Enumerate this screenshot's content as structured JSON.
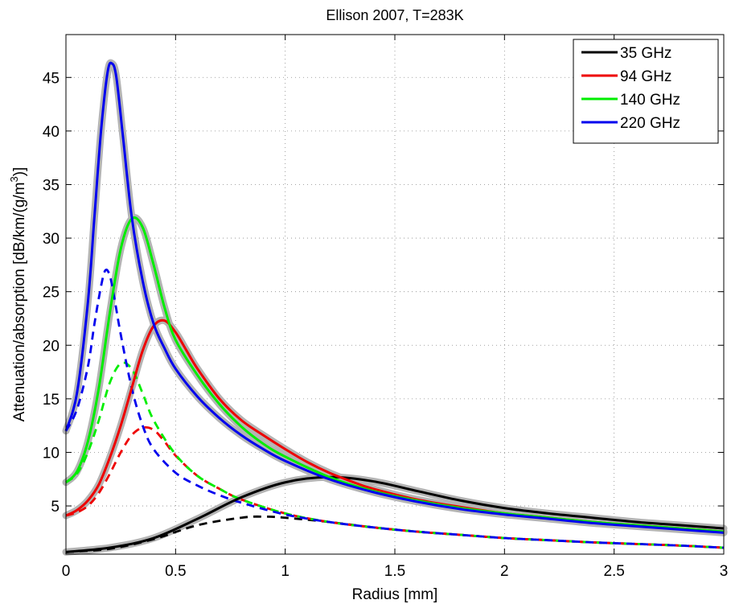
{
  "chart_data": {
    "type": "line",
    "title": "Ellison 2007, T=283K",
    "xlabel": "Radius [mm]",
    "ylabel": "Attenuation/absorption [dB/km/(g/m^3)]",
    "xlim": [
      0,
      3
    ],
    "ylim": [
      0.5,
      49
    ],
    "xticks": [
      0,
      0.5,
      1,
      1.5,
      2,
      2.5,
      3
    ],
    "xtick_labels": [
      "0",
      "0.5",
      "1",
      "1.5",
      "2",
      "2.5",
      "3"
    ],
    "yticks": [
      5,
      10,
      15,
      20,
      25,
      30,
      35,
      40,
      45
    ],
    "ytick_labels": [
      "5",
      "10",
      "15",
      "20",
      "25",
      "30",
      "35",
      "40",
      "45"
    ],
    "grid": true,
    "legend_position": "top-right",
    "series": [
      {
        "name": "35 GHz",
        "color": "#000000",
        "attenuation": {
          "x": [
            0,
            0.2,
            0.4,
            0.6,
            0.8,
            1.0,
            1.2,
            1.4,
            1.6,
            1.8,
            2.0,
            2.2,
            2.4,
            2.6,
            2.8,
            3.0
          ],
          "y": [
            0.7,
            1.1,
            2.0,
            3.8,
            5.8,
            7.2,
            7.7,
            7.3,
            6.4,
            5.5,
            4.8,
            4.3,
            3.9,
            3.5,
            3.2,
            2.9
          ]
        },
        "absorption": {
          "x": [
            0,
            0.2,
            0.4,
            0.6,
            0.8,
            0.9,
            1.0,
            1.2,
            1.4,
            1.6,
            1.8,
            2.0,
            2.2,
            2.4,
            2.6,
            2.8,
            3.0
          ],
          "y": [
            0.7,
            1.0,
            1.9,
            3.2,
            3.9,
            4.0,
            3.9,
            3.5,
            3.0,
            2.6,
            2.3,
            2.0,
            1.8,
            1.6,
            1.45,
            1.3,
            1.1
          ]
        }
      },
      {
        "name": "94 GHz",
        "color": "#ee0000",
        "attenuation": {
          "x": [
            0,
            0.05,
            0.1,
            0.15,
            0.2,
            0.25,
            0.3,
            0.35,
            0.4,
            0.45,
            0.5,
            0.55,
            0.6,
            0.7,
            0.8,
            0.9,
            1.0,
            1.1,
            1.2,
            1.3,
            1.4,
            1.6,
            1.8,
            2.0,
            2.2,
            2.4,
            2.6,
            2.8,
            3.0
          ],
          "y": [
            4.1,
            4.6,
            5.5,
            7.0,
            9.5,
            12.5,
            16.0,
            19.5,
            21.8,
            22.3,
            21.2,
            19.5,
            17.8,
            15.0,
            13.0,
            11.6,
            10.3,
            9.1,
            8.1,
            7.3,
            6.6,
            5.6,
            4.9,
            4.3,
            3.9,
            3.5,
            3.2,
            2.9,
            2.6
          ]
        },
        "absorption": {
          "x": [
            0,
            0.05,
            0.1,
            0.15,
            0.2,
            0.25,
            0.3,
            0.35,
            0.4,
            0.45,
            0.5,
            0.6,
            0.7,
            0.8,
            1.0,
            1.2,
            1.4,
            1.6,
            1.8,
            2.0,
            2.2,
            2.4,
            2.6,
            2.8,
            3.0
          ],
          "y": [
            4.1,
            4.4,
            5.0,
            6.2,
            8.0,
            10.0,
            11.6,
            12.3,
            12.1,
            11.0,
            9.7,
            7.8,
            6.6,
            5.6,
            4.3,
            3.5,
            3.0,
            2.6,
            2.3,
            2.0,
            1.8,
            1.6,
            1.45,
            1.3,
            1.1
          ]
        }
      },
      {
        "name": "140 GHz",
        "color": "#00ee00",
        "attenuation": {
          "x": [
            0,
            0.05,
            0.1,
            0.15,
            0.2,
            0.25,
            0.3,
            0.35,
            0.4,
            0.45,
            0.5,
            0.6,
            0.7,
            0.8,
            0.9,
            1.0,
            1.2,
            1.4,
            1.6,
            1.8,
            2.0,
            2.2,
            2.4,
            2.6,
            2.8,
            3.0
          ],
          "y": [
            7.2,
            8.2,
            11.0,
            16.0,
            23.0,
            29.0,
            31.8,
            31.0,
            27.5,
            23.5,
            20.5,
            17.2,
            14.5,
            12.4,
            10.8,
            9.6,
            7.7,
            6.4,
            5.5,
            4.8,
            4.3,
            3.9,
            3.5,
            3.2,
            2.9,
            2.6
          ]
        },
        "absorption": {
          "x": [
            0,
            0.05,
            0.1,
            0.15,
            0.2,
            0.25,
            0.3,
            0.35,
            0.4,
            0.5,
            0.6,
            0.7,
            0.8,
            1.0,
            1.2,
            1.4,
            1.6,
            1.8,
            2.0,
            2.2,
            2.4,
            2.6,
            2.8,
            3.0
          ],
          "y": [
            7.2,
            8.0,
            10.0,
            13.0,
            16.5,
            18.3,
            17.8,
            15.5,
            13.0,
            9.8,
            7.8,
            6.6,
            5.6,
            4.3,
            3.5,
            3.0,
            2.6,
            2.3,
            2.0,
            1.8,
            1.6,
            1.45,
            1.3,
            1.1
          ]
        }
      },
      {
        "name": "220 GHz",
        "color": "#0000ee",
        "attenuation": {
          "x": [
            0,
            0.05,
            0.1,
            0.13,
            0.16,
            0.19,
            0.21,
            0.23,
            0.26,
            0.3,
            0.35,
            0.4,
            0.45,
            0.5,
            0.6,
            0.7,
            0.8,
            0.9,
            1.0,
            1.2,
            1.4,
            1.6,
            1.8,
            2.0,
            2.2,
            2.4,
            2.6,
            2.8,
            3.0
          ],
          "y": [
            12.0,
            15.5,
            24.0,
            32.0,
            40.0,
            45.5,
            46.3,
            45.0,
            39.5,
            32.0,
            26.0,
            22.0,
            19.7,
            17.8,
            15.2,
            13.2,
            11.6,
            10.3,
            9.2,
            7.5,
            6.3,
            5.4,
            4.7,
            4.2,
            3.8,
            3.4,
            3.1,
            2.8,
            2.5
          ]
        },
        "absorption": {
          "x": [
            0,
            0.05,
            0.1,
            0.13,
            0.16,
            0.18,
            0.2,
            0.22,
            0.25,
            0.3,
            0.35,
            0.4,
            0.5,
            0.6,
            0.7,
            0.8,
            1.0,
            1.2,
            1.4,
            1.6,
            1.8,
            2.0,
            2.2,
            2.4,
            2.6,
            2.8,
            3.0
          ],
          "y": [
            12.0,
            14.0,
            18.0,
            22.0,
            25.5,
            27.0,
            26.5,
            24.5,
            21.0,
            16.0,
            12.5,
            10.3,
            8.1,
            6.9,
            6.0,
            5.3,
            4.2,
            3.5,
            3.0,
            2.6,
            2.3,
            2.0,
            1.8,
            1.6,
            1.45,
            1.3,
            1.1
          ]
        }
      }
    ]
  }
}
